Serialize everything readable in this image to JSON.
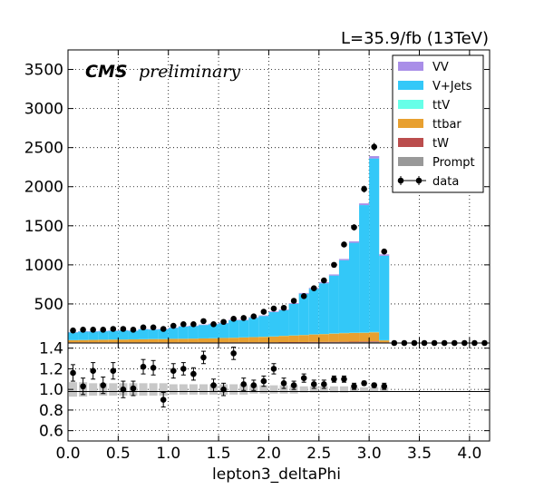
{
  "luminosity": "L=35.9/fb (13TeV)",
  "cms_label": "CMS",
  "preliminary_label": "preliminary",
  "colors": {
    "VV": "#a98ee8",
    "V+Jets": "#33c8f8",
    "ttV": "#66ffe8",
    "ttbar": "#e8a030",
    "tW": "#bb4d4d",
    "Prompt": "#999999",
    "data": "#000000",
    "ratio_band": "#c8c8c8"
  },
  "chart_data": [
    {
      "type": "bar",
      "stacked": true,
      "xlabel": "",
      "ylabel": "",
      "xlim": [
        0,
        4.2
      ],
      "ylim": [
        0,
        3750
      ],
      "grid": true,
      "legend_position": "top-right",
      "x_tick_labels": [
        "0.0",
        "0.5",
        "1.0",
        "1.5",
        "2.0",
        "2.5",
        "3.0",
        "3.5",
        "4.0"
      ],
      "y_tick_labels": [
        "500",
        "1000",
        "1500",
        "2000",
        "2500",
        "3000",
        "3500"
      ],
      "legend": [
        "VV",
        "V+Jets",
        "ttV",
        "ttbar",
        "tW",
        "Prompt",
        "data"
      ],
      "bin_width": 0.1,
      "bin_centers": [
        0.05,
        0.15,
        0.25,
        0.35,
        0.45,
        0.55,
        0.65,
        0.75,
        0.85,
        0.95,
        1.05,
        1.15,
        1.25,
        1.35,
        1.45,
        1.55,
        1.65,
        1.75,
        1.85,
        1.95,
        2.05,
        2.15,
        2.25,
        2.35,
        2.45,
        2.55,
        2.65,
        2.75,
        2.85,
        2.95,
        3.05,
        3.15
      ],
      "series": [
        {
          "name": "Prompt",
          "values": [
            5,
            5,
            5,
            5,
            5,
            5,
            5,
            5,
            5,
            5,
            5,
            5,
            5,
            5,
            5,
            5,
            5,
            5,
            5,
            5,
            5,
            6,
            6,
            7,
            8,
            8,
            9,
            10,
            10,
            12,
            14,
            6
          ]
        },
        {
          "name": "tW",
          "values": [
            3,
            3,
            3,
            3,
            3,
            3,
            3,
            3,
            3,
            3,
            3,
            3,
            3,
            3,
            3,
            4,
            4,
            4,
            4,
            4,
            4,
            5,
            5,
            5,
            6,
            6,
            6,
            6,
            7,
            7,
            8,
            3
          ]
        },
        {
          "name": "ttbar",
          "values": [
            28,
            30,
            32,
            34,
            36,
            36,
            38,
            40,
            42,
            42,
            45,
            46,
            48,
            50,
            52,
            55,
            58,
            62,
            66,
            70,
            74,
            80,
            85,
            90,
            95,
            100,
            105,
            110,
            112,
            112,
            115,
            25
          ]
        },
        {
          "name": "ttV",
          "values": [
            1,
            1,
            1,
            1,
            1,
            1,
            1,
            1,
            1,
            1,
            1,
            1,
            1,
            1,
            1,
            1,
            1,
            1,
            1,
            2,
            2,
            2,
            2,
            2,
            2,
            2,
            3,
            3,
            3,
            3,
            4,
            2
          ]
        },
        {
          "name": "V+Jets",
          "values": [
            98,
            106,
            104,
            107,
            110,
            115,
            108,
            126,
            121,
            123,
            137,
            154,
            159,
            171,
            179,
            185,
            222,
            218,
            246,
            264,
            310,
            327,
            402,
            526,
            582,
            648,
            740,
            930,
            1150,
            1630,
            2220,
            1080
          ]
        },
        {
          "name": "VV",
          "values": [
            5,
            5,
            5,
            5,
            5,
            5,
            5,
            5,
            5,
            6,
            6,
            6,
            6,
            6,
            7,
            7,
            7,
            8,
            8,
            8,
            8,
            9,
            10,
            10,
            12,
            13,
            14,
            16,
            18,
            22,
            30,
            18
          ]
        }
      ],
      "data_points": {
        "name": "data",
        "values": [
          160,
          170,
          170,
          170,
          180,
          180,
          170,
          200,
          200,
          180,
          220,
          240,
          240,
          280,
          240,
          270,
          310,
          320,
          340,
          400,
          440,
          450,
          540,
          600,
          700,
          800,
          1000,
          1260,
          1480,
          1970,
          2510,
          1170
        ]
      }
    },
    {
      "type": "scatter",
      "xlabel": "lepton3_deltaPhi",
      "ylabel": "",
      "xlim": [
        0,
        4.2
      ],
      "ylim": [
        0.5,
        1.45
      ],
      "grid": true,
      "reference_line": 1.0,
      "x_tick_labels": [
        "0.0",
        "0.5",
        "1.0",
        "1.5",
        "2.0",
        "2.5",
        "3.0",
        "3.5",
        "4.0"
      ],
      "y_tick_labels": [
        "0.6",
        "0.8",
        "1.0",
        "1.2",
        "1.4"
      ],
      "ratio": [
        1.16,
        1.03,
        1.18,
        1.04,
        1.18,
        1.0,
        1.01,
        1.22,
        1.21,
        0.9,
        1.18,
        1.2,
        1.15,
        1.31,
        1.04,
        1.0,
        1.35,
        1.05,
        1.04,
        1.08,
        1.2,
        1.06,
        1.04,
        1.11,
        1.05,
        1.05,
        1.1,
        1.1,
        1.03,
        1.06,
        1.04,
        1.03
      ],
      "ratio_errors": [
        0.08,
        0.08,
        0.08,
        0.08,
        0.08,
        0.08,
        0.07,
        0.07,
        0.07,
        0.07,
        0.07,
        0.06,
        0.06,
        0.06,
        0.06,
        0.06,
        0.06,
        0.06,
        0.05,
        0.05,
        0.05,
        0.05,
        0.04,
        0.04,
        0.04,
        0.04,
        0.03,
        0.03,
        0.03,
        0.02,
        0.02,
        0.03
      ],
      "band_errors": [
        0.07,
        0.07,
        0.06,
        0.06,
        0.06,
        0.06,
        0.06,
        0.06,
        0.06,
        0.06,
        0.05,
        0.05,
        0.05,
        0.05,
        0.05,
        0.05,
        0.05,
        0.05,
        0.04,
        0.04,
        0.04,
        0.04,
        0.04,
        0.03,
        0.03,
        0.03,
        0.03,
        0.03,
        0.02,
        0.02,
        0.02,
        0.02
      ]
    }
  ]
}
